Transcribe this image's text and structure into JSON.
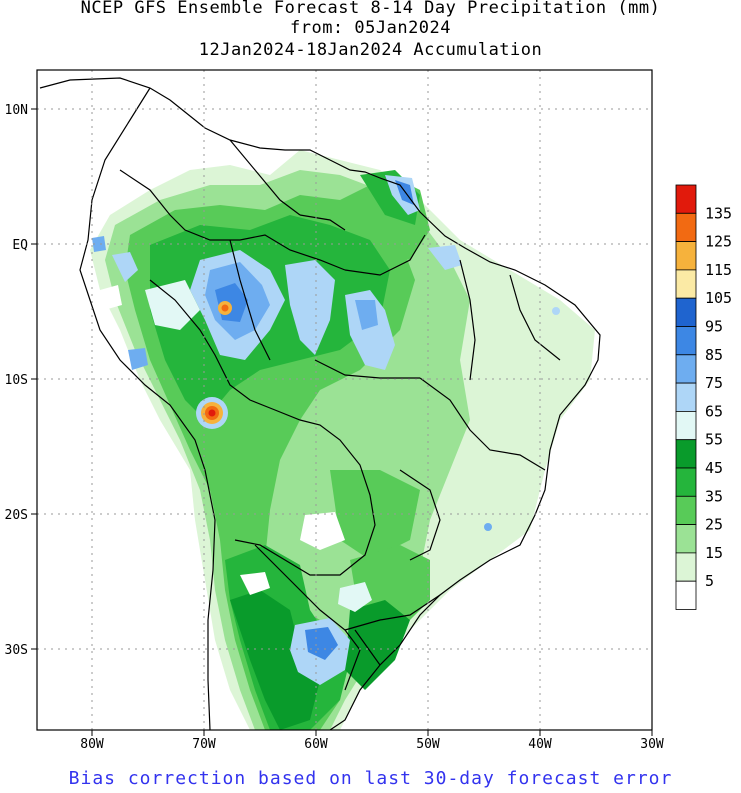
{
  "header": {
    "line1": "NCEP GFS Ensemble Forecast 8-14 Day Precipitation (mm)",
    "line2": "from: 05Jan2024",
    "line3": "12Jan2024-18Jan2024 Accumulation"
  },
  "axes": {
    "lon_labels": [
      "80W",
      "70W",
      "60W",
      "50W",
      "40W",
      "30W"
    ],
    "lat_labels": [
      "10N",
      "EQ",
      "10S",
      "20S",
      "30S"
    ]
  },
  "legend": {
    "labels": [
      "135",
      "125",
      "115",
      "105",
      "95",
      "85",
      "75",
      "65",
      "55",
      "45",
      "35",
      "25",
      "15",
      "5"
    ],
    "colors": [
      "#e11a0c",
      "#f26a12",
      "#f6b23c",
      "#fbeaa5",
      "#1f64cf",
      "#3d87e4",
      "#6eadf0",
      "#aed6f7",
      "#e2f8f5",
      "#099b2b",
      "#25b53c",
      "#58cb58",
      "#9be295",
      "#dcf5d6",
      "#ffffff"
    ]
  },
  "footer": {
    "note": "Bias correction based on last 30-day forecast error"
  }
}
